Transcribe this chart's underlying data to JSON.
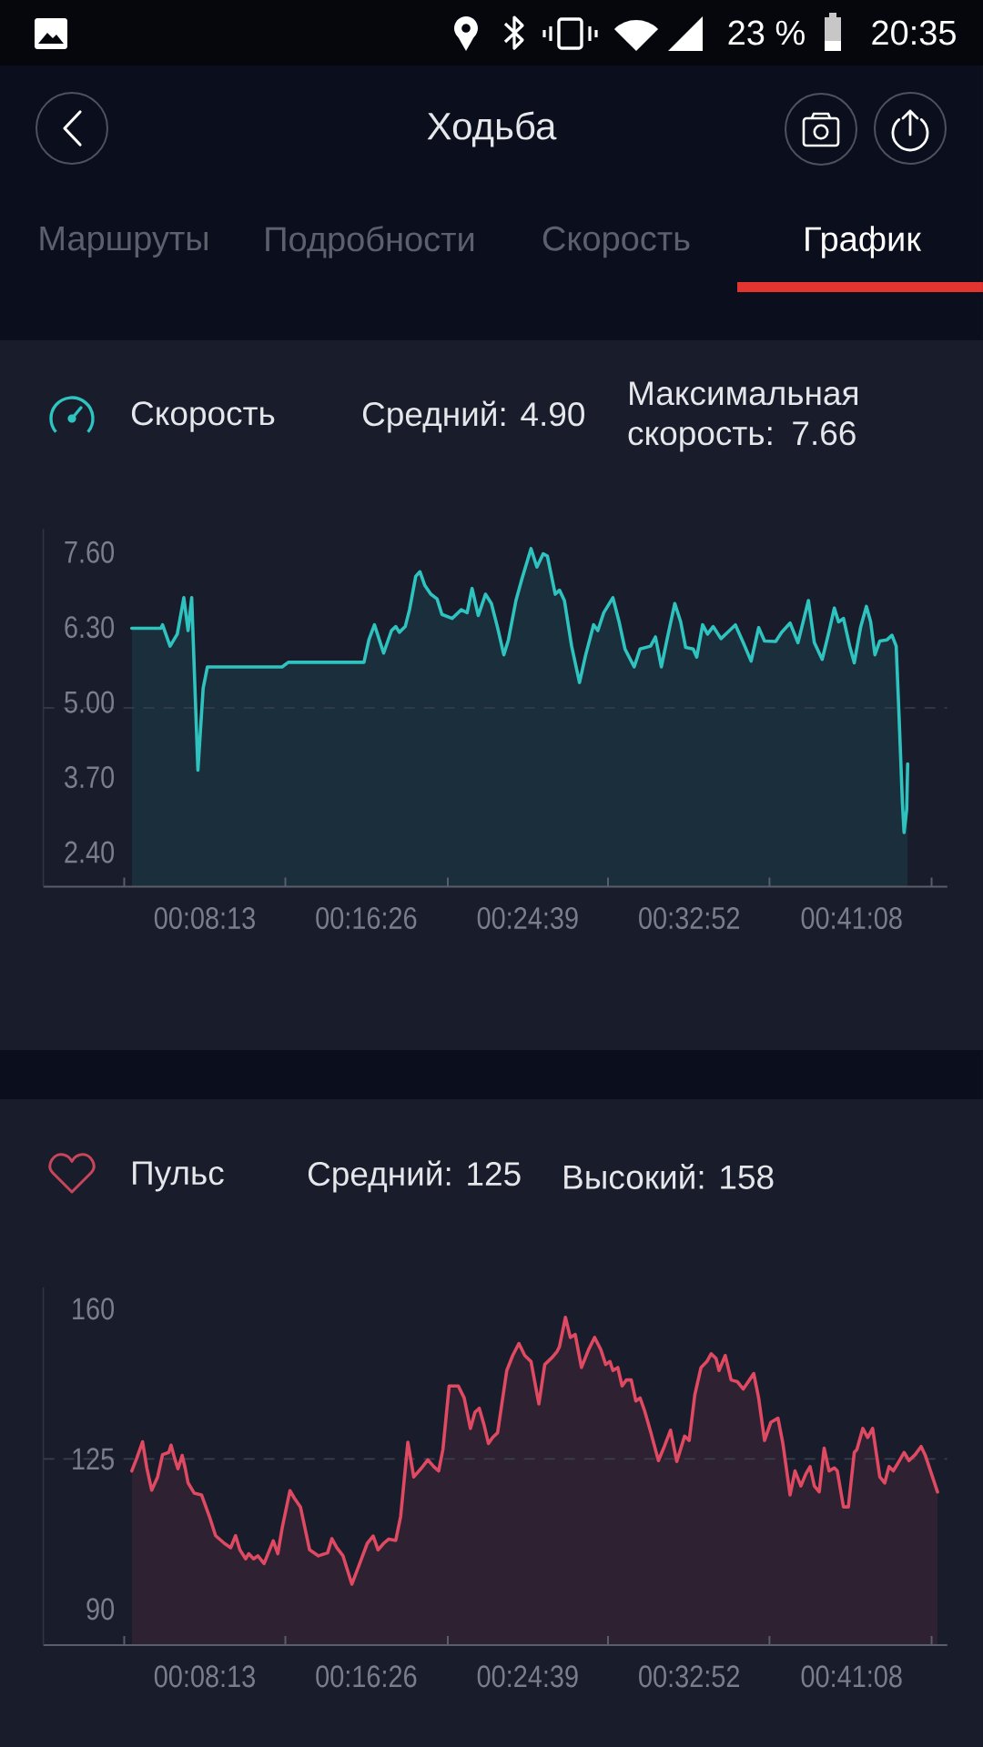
{
  "chart_data": [
    {
      "type": "other",
      "title": "Ходьба",
      "annotations": [
        "23 %",
        "20:35",
        "Маршруты",
        "Подробности",
        "Скорость",
        "График"
      ]
    },
    {
      "type": "area",
      "title": "Скорость",
      "annotations": [
        "Средний: 4.90",
        "Максимальная скорость: 7.66"
      ],
      "color": "#2fc3bf",
      "x": [
        270,
        359,
        364,
        387,
        409,
        429,
        442,
        453,
        472,
        488,
        501,
        729,
        748,
        979,
        994,
        1011,
        1039,
        1063,
        1076,
        1087,
        1105,
        1118,
        1137,
        1150,
        1165,
        1183,
        1202,
        1217,
        1248,
        1276,
        1294,
        1309,
        1328,
        1350,
        1368,
        1387,
        1406,
        1420,
        1443,
        1461,
        1489,
        1507,
        1526,
        1539,
        1563,
        1576,
        1591,
        1613,
        1637,
        1656,
        1680,
        1693,
        1711,
        1739,
        1758,
        1776,
        1804,
        1822,
        1854,
        1869,
        1887,
        1906,
        1928,
        1946,
        1961,
        1984,
        1995,
        2013,
        2028,
        2045,
        2069,
        2095,
        2113,
        2137,
        2161,
        2184,
        2202,
        2236,
        2254,
        2280,
        2304,
        2336,
        2354,
        2378,
        2397,
        2415,
        2428,
        2443,
        2462,
        2476,
        2495,
        2513,
        2526,
        2539,
        2554,
        2576,
        2591,
        2604,
        2613,
        2623,
        2628,
        2636,
        2639
      ],
      "values": [
        6.28,
        6.28,
        6.34,
        5.97,
        6.18,
        6.81,
        6.24,
        6.81,
        3.82,
        5.24,
        5.61,
        5.61,
        5.69,
        5.69,
        6.08,
        6.34,
        5.85,
        6.24,
        6.31,
        6.21,
        6.31,
        6.6,
        7.18,
        7.26,
        7.02,
        6.87,
        6.79,
        6.52,
        6.45,
        6.6,
        6.55,
        6.97,
        6.5,
        6.87,
        6.71,
        6.29,
        5.82,
        6.08,
        6.76,
        7.13,
        7.66,
        7.34,
        7.57,
        7.53,
        6.87,
        6.94,
        6.76,
        5.97,
        5.34,
        5.82,
        6.34,
        6.24,
        6.55,
        6.81,
        6.39,
        5.92,
        5.61,
        5.92,
        5.97,
        6.13,
        5.61,
        6.13,
        6.71,
        6.39,
        5.95,
        5.92,
        5.78,
        6.34,
        6.18,
        6.31,
        6.1,
        6.24,
        6.34,
        6.03,
        5.71,
        6.29,
        6.06,
        6.05,
        6.21,
        6.37,
        6.03,
        6.76,
        6.03,
        5.74,
        6.18,
        6.63,
        6.39,
        6.45,
        5.97,
        5.68,
        6.29,
        6.66,
        6.39,
        5.82,
        6.06,
        6.08,
        6.16,
        5.97,
        4.71,
        3.24,
        2.74,
        3.14,
        3.93
      ],
      "xlim": [
        0,
        2760
      ],
      "xticks": [
        {
          "value": 247,
          "label": null
        },
        {
          "value": 493,
          "label": "00:08:13"
        },
        {
          "value": 739,
          "label": null
        },
        {
          "value": 986,
          "label": "00:16:26"
        },
        {
          "value": 1235,
          "label": null
        },
        {
          "value": 1479,
          "label": "00:24:39"
        },
        {
          "value": 1724,
          "label": null
        },
        {
          "value": 1972,
          "label": "00:32:52"
        },
        {
          "value": 2217,
          "label": null
        },
        {
          "value": 2468,
          "label": "00:41:08"
        },
        {
          "value": 2712,
          "label": null
        }
      ],
      "ylim": [
        1.8,
        8.0
      ],
      "yticks": [
        {
          "value": 2.4,
          "label": "2.40"
        },
        {
          "value": 3.7,
          "label": "3.70"
        },
        {
          "value": 5.0,
          "label": "5.00"
        },
        {
          "value": 6.3,
          "label": "6.30"
        },
        {
          "value": 7.6,
          "label": "7.60"
        }
      ],
      "ref_lines": [
        {
          "axis": "y",
          "value": 4.9,
          "line_style": "dashed",
          "color": "#3a3f4c"
        }
      ]
    },
    {
      "type": "area",
      "title": "Пульс",
      "annotations": [
        "Средний: 125",
        "Высокий: 158"
      ],
      "color": "#df4a62",
      "x": [
        270,
        285,
        303,
        316,
        331,
        349,
        364,
        383,
        390,
        401,
        411,
        424,
        433,
        442,
        461,
        483,
        507,
        526,
        553,
        572,
        587,
        600,
        618,
        627,
        642,
        655,
        674,
        702,
        716,
        729,
        753,
        766,
        785,
        813,
        840,
        868,
        881,
        896,
        915,
        942,
        961,
        989,
        1007,
        1022,
        1039,
        1054,
        1076,
        1091,
        1113,
        1131,
        1155,
        1174,
        1192,
        1207,
        1220,
        1239,
        1267,
        1285,
        1304,
        1318,
        1331,
        1346,
        1359,
        1372,
        1387,
        1415,
        1433,
        1452,
        1470,
        1489,
        1513,
        1531,
        1554,
        1569,
        1576,
        1594,
        1609,
        1624,
        1643,
        1665,
        1683,
        1702,
        1717,
        1730,
        1739,
        1754,
        1767,
        1780,
        1795,
        1809,
        1822,
        1835,
        1854,
        1878,
        1896,
        1915,
        1934,
        1958,
        1972,
        1989,
        2008,
        2026,
        2039,
        2054,
        2063,
        2082,
        2100,
        2119,
        2137,
        2156,
        2169,
        2184,
        2202,
        2221,
        2243,
        2258,
        2280,
        2295,
        2313,
        2328,
        2341,
        2354,
        2369,
        2384,
        2399,
        2415,
        2424,
        2443,
        2458,
        2476,
        2484,
        2502,
        2517,
        2532,
        2554,
        2569,
        2582,
        2595,
        2610,
        2628,
        2643,
        2662,
        2680,
        2693,
        2730
      ],
      "values": [
        122.2,
        125.1,
        129.0,
        122.9,
        117.7,
        120.8,
        126.0,
        126.5,
        128.2,
        125.1,
        122.7,
        125.8,
        122.9,
        119.4,
        117.0,
        116.6,
        111.6,
        107.1,
        105.3,
        104.3,
        107.1,
        103.8,
        101.7,
        102.9,
        101.7,
        102.4,
        100.6,
        105.9,
        102.9,
        108.8,
        117.6,
        115.9,
        113.8,
        103.8,
        102.4,
        103.1,
        106.4,
        104.3,
        102.4,
        95.8,
        99.6,
        105.3,
        107.0,
        103.8,
        105.3,
        106.3,
        106.0,
        111.6,
        128.9,
        120.8,
        122.9,
        124.8,
        123.2,
        122.2,
        127.2,
        142.0,
        142.0,
        139.2,
        132.1,
        135.9,
        136.8,
        132.8,
        128.6,
        130.0,
        131.1,
        145.6,
        149.1,
        151.9,
        149.1,
        147.7,
        137.8,
        147.0,
        148.7,
        150.1,
        151.2,
        158.0,
        153.3,
        154.0,
        146.3,
        150.5,
        153.3,
        150.5,
        147.0,
        147.7,
        145.6,
        146.3,
        142.0,
        143.4,
        143.4,
        138.5,
        139.2,
        136.4,
        131.4,
        124.6,
        127.9,
        131.7,
        124.4,
        130.3,
        129.3,
        139.9,
        146.3,
        147.7,
        149.5,
        148.4,
        145.6,
        149.1,
        143.4,
        143.0,
        141.3,
        143.4,
        144.9,
        139.2,
        129.3,
        133.5,
        134.5,
        128.6,
        116.6,
        122.2,
        118.7,
        121.5,
        123.2,
        118.7,
        117.3,
        127.5,
        122.2,
        122.9,
        122.2,
        113.8,
        113.8,
        126.5,
        127.2,
        132.1,
        130.0,
        132.1,
        120.8,
        119.4,
        123.2,
        122.2,
        124.1,
        126.5,
        124.6,
        126.0,
        127.9,
        125.8,
        117.3
      ],
      "xlim": [
        0,
        2760
      ],
      "xticks": [
        {
          "value": 247,
          "label": null
        },
        {
          "value": 493,
          "label": "00:08:13"
        },
        {
          "value": 739,
          "label": null
        },
        {
          "value": 986,
          "label": "00:16:26"
        },
        {
          "value": 1235,
          "label": null
        },
        {
          "value": 1479,
          "label": "00:24:39"
        },
        {
          "value": 1724,
          "label": null
        },
        {
          "value": 1972,
          "label": "00:32:52"
        },
        {
          "value": 2217,
          "label": null
        },
        {
          "value": 2468,
          "label": "00:41:08"
        },
        {
          "value": 2712,
          "label": null
        }
      ],
      "ylim": [
        81.6,
        165
      ],
      "yticks": [
        90,
        125,
        160
      ],
      "ref_lines": [
        {
          "axis": "y",
          "value": 125,
          "line_style": "dashed",
          "color": "#3a3f4c"
        }
      ]
    }
  ]
}
